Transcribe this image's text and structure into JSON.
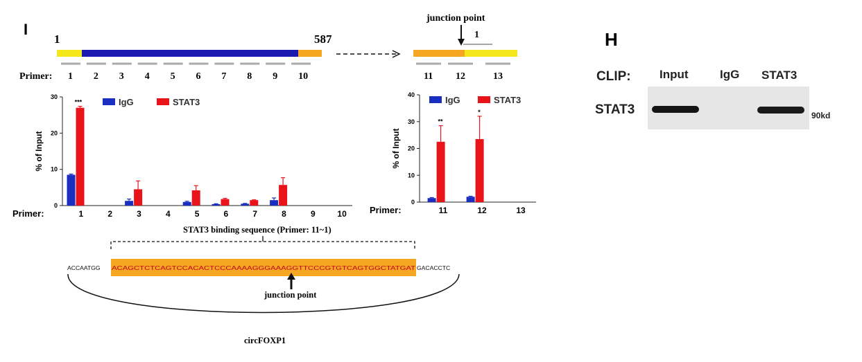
{
  "panel_i": {
    "label": "I",
    "linear_map": {
      "start": "1",
      "end": "587",
      "primer_prefix": "Primer:",
      "primers_left": [
        "1",
        "2",
        "3",
        "4",
        "5",
        "6",
        "7",
        "8",
        "9",
        "10"
      ],
      "junction_label": "junction point",
      "junction_one": "1",
      "primers_right": [
        "11",
        "12",
        "13"
      ]
    },
    "sequence": {
      "title": "STAT3 binding sequence (Primer: 11~1)",
      "left_flank": "ACCAATGG",
      "highlight": "ACAGCTCTCAGTCCACACTCCCAAAAGGGAAAGGTTCCCGTGTCAGTGGCTATGAT",
      "right_flank": "GACACCTC",
      "junction_label": "junction point",
      "circ_label": "circFOXP1"
    },
    "colors": {
      "igg": "#1a2fbf",
      "stat3": "#e8141a",
      "highlight": "#f5a623",
      "yellow": "#f4e81c",
      "navy": "#1a1ab0"
    }
  },
  "chart_data": [
    {
      "type": "bar",
      "ylabel": "% of Input",
      "xprefix": "Primer:",
      "categories": [
        "1",
        "2",
        "3",
        "4",
        "5",
        "6",
        "7",
        "8",
        "9",
        "10"
      ],
      "ylim": [
        0,
        30
      ],
      "yticks": [
        "0",
        "10",
        "20",
        "30"
      ],
      "legend": [
        "IgG",
        "STAT3"
      ],
      "series": [
        {
          "name": "IgG",
          "values": [
            8.5,
            0,
            1.3,
            0,
            1.0,
            0.4,
            0.5,
            1.5,
            0,
            0
          ],
          "err": [
            0.2,
            0,
            0.5,
            0,
            0.2,
            0.1,
            0.1,
            0.6,
            0,
            0
          ]
        },
        {
          "name": "STAT3",
          "values": [
            27,
            0,
            4.5,
            0,
            4.2,
            1.8,
            1.5,
            5.7,
            0,
            0
          ],
          "err": [
            0.4,
            0,
            2.3,
            0,
            1.3,
            0.2,
            0.1,
            2.0,
            0,
            0
          ]
        }
      ],
      "significance": {
        "1": "***"
      }
    },
    {
      "type": "bar",
      "ylabel": "% of Input",
      "xprefix": "Primer:",
      "categories": [
        "11",
        "12",
        "13"
      ],
      "ylim": [
        0,
        40
      ],
      "yticks": [
        "0",
        "10",
        "20",
        "30",
        "40"
      ],
      "legend": [
        "IgG",
        "STAT3"
      ],
      "series": [
        {
          "name": "IgG",
          "values": [
            1.5,
            2.0,
            0
          ],
          "err": [
            0.2,
            0.2,
            0
          ]
        },
        {
          "name": "STAT3",
          "values": [
            22.5,
            23.5,
            0
          ],
          "err": [
            6.0,
            8.5,
            0
          ]
        }
      ],
      "significance": {
        "11": "**",
        "12": "*"
      }
    }
  ],
  "panel_h": {
    "label": "H",
    "clip_label": "CLIP:",
    "lanes": [
      "Input",
      "IgG",
      "STAT3"
    ],
    "row_label": "STAT3",
    "size_marker": "90kd"
  }
}
